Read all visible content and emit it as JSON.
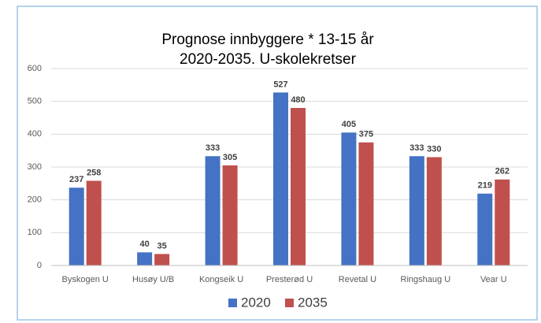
{
  "chart_data": {
    "type": "bar",
    "title": "Prognose innbyggere * 13-15 år",
    "subtitle": "2020-2035.  U-skolekretser",
    "categories": [
      "Byskogen U",
      "Husøy U/B",
      "Kongseik U",
      "Presterød U",
      "Revetal U",
      "Ringshaug U",
      "Vear U"
    ],
    "series": [
      {
        "name": "2020",
        "color": "#4472c4",
        "values": [
          237,
          40,
          333,
          527,
          405,
          333,
          219
        ]
      },
      {
        "name": "2035",
        "color": "#c0504d",
        "values": [
          258,
          35,
          305,
          480,
          375,
          330,
          262
        ]
      }
    ],
    "ylim": [
      0,
      600
    ],
    "yticks": [
      0,
      100,
      200,
      300,
      400,
      500,
      600
    ],
    "grid": true,
    "legend": "bottom"
  }
}
